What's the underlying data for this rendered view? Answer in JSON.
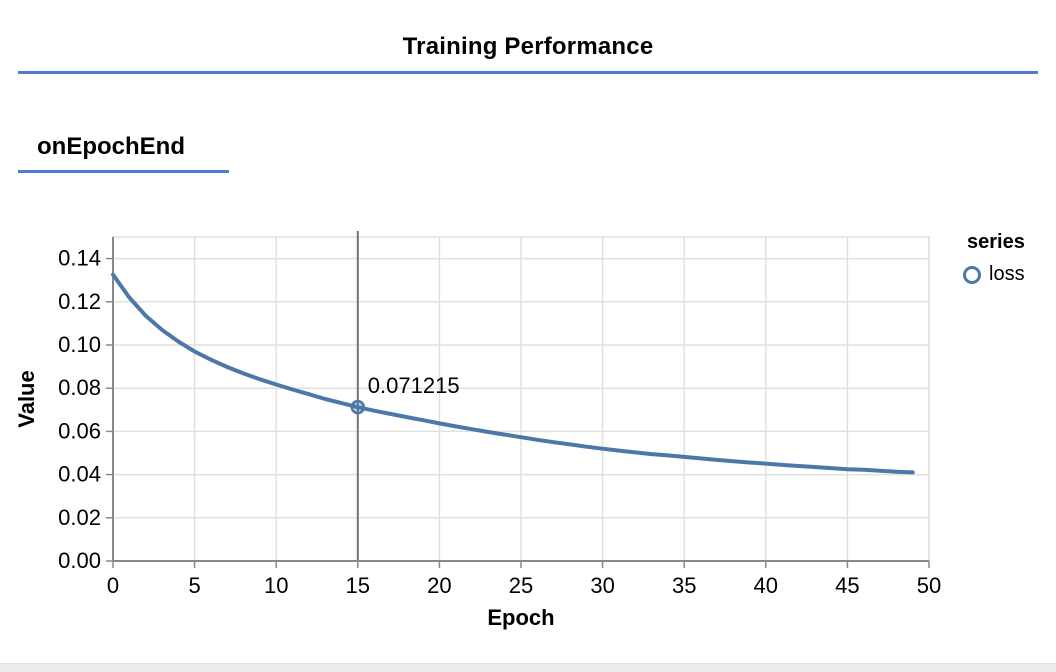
{
  "header": {
    "title": "Training Performance"
  },
  "surface": {
    "label": "onEpochEnd"
  },
  "colors": {
    "accent_rule": "#4a7dd2",
    "line": "#4c78a8",
    "grid": "#e0e0e0",
    "axis": "#888888",
    "crosshair": "#757575",
    "text": "#000000",
    "bottom_strip": "#ececec"
  },
  "chart_data": {
    "type": "line",
    "title": "",
    "xlabel": "Epoch",
    "ylabel": "Value",
    "xlim": [
      0,
      50
    ],
    "ylim": [
      0,
      0.15
    ],
    "x_ticks": [
      0,
      5,
      10,
      15,
      20,
      25,
      30,
      35,
      40,
      45,
      50
    ],
    "y_ticks": [
      0.0,
      0.02,
      0.04,
      0.06,
      0.08,
      0.1,
      0.12,
      0.14
    ],
    "grid": true,
    "legend": {
      "title": "series",
      "position": "right",
      "entries": [
        {
          "label": "loss",
          "color": "#4c78a8",
          "symbol": "circle-outline"
        }
      ]
    },
    "series": [
      {
        "name": "loss",
        "color": "#4c78a8",
        "x": [
          0,
          1,
          2,
          3,
          4,
          5,
          6,
          7,
          8,
          9,
          10,
          11,
          12,
          13,
          14,
          15,
          16,
          17,
          18,
          19,
          20,
          21,
          22,
          23,
          24,
          25,
          26,
          27,
          28,
          29,
          30,
          31,
          32,
          33,
          34,
          35,
          36,
          37,
          38,
          39,
          40,
          41,
          42,
          43,
          44,
          45,
          46,
          47,
          48,
          49
        ],
        "values": [
          0.1326,
          0.122,
          0.1136,
          0.107,
          0.1016,
          0.097,
          0.0932,
          0.0898,
          0.0868,
          0.0841,
          0.0817,
          0.0794,
          0.0772,
          0.075,
          0.0731,
          0.071215,
          0.0696,
          0.0681,
          0.0666,
          0.0652,
          0.0637,
          0.0623,
          0.061,
          0.0597,
          0.0585,
          0.0573,
          0.0561,
          0.055,
          0.054,
          0.0529,
          0.052,
          0.0511,
          0.0503,
          0.0495,
          0.0489,
          0.0482,
          0.0475,
          0.0468,
          0.0462,
          0.0456,
          0.0451,
          0.0445,
          0.044,
          0.0435,
          0.043,
          0.0425,
          0.0422,
          0.0418,
          0.0413,
          0.041
        ]
      }
    ],
    "highlight": {
      "series": "loss",
      "x": 15,
      "y": 0.071215,
      "label": "0.071215",
      "crosshair": true
    }
  }
}
